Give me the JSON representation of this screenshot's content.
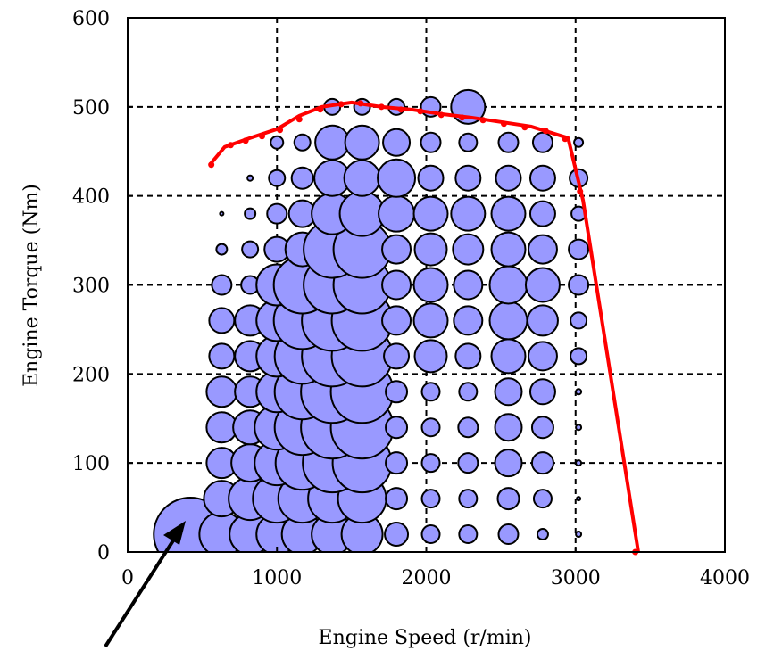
{
  "chart_data": {
    "type": "scatter",
    "subtype": "bubble",
    "xlabel": "Engine Speed (r/min)",
    "ylabel": "Engine Torque (Nm)",
    "xlim": [
      0,
      4000
    ],
    "ylim": [
      0,
      600
    ],
    "x_ticks": [
      "0",
      "1000",
      "2000",
      "3000",
      "4000"
    ],
    "y_ticks": [
      "0",
      "100",
      "200",
      "300",
      "400",
      "500",
      "600"
    ],
    "grid": "dashed",
    "colors": {
      "bubble_fill": "#9999ff",
      "bubble_stroke": "#000000",
      "curve": "#ff0000",
      "grid": "#000000"
    },
    "speeds": [
      420,
      630,
      820,
      1000,
      1170,
      1370,
      1570,
      1800,
      2030,
      2280,
      2550,
      2780,
      3020
    ],
    "torques": [
      20,
      60,
      100,
      140,
      180,
      220,
      260,
      300,
      340,
      380,
      420,
      460,
      500
    ],
    "bubble_sizes": [
      [
        41,
        25,
        23,
        23,
        23,
        23,
        23,
        13,
        10,
        10,
        11,
        6,
        3
      ],
      [
        0,
        20,
        24,
        27,
        27,
        27,
        27,
        12,
        10,
        10,
        12,
        10,
        2
      ],
      [
        0,
        17,
        21,
        25,
        30,
        33,
        33,
        12,
        10,
        11,
        15,
        12,
        3
      ],
      [
        0,
        17,
        19,
        25,
        31,
        35,
        35,
        12,
        10,
        11,
        15,
        12,
        3
      ],
      [
        0,
        17,
        17,
        23,
        31,
        35,
        35,
        12,
        10,
        10,
        15,
        14,
        3
      ],
      [
        0,
        14,
        17,
        23,
        31,
        34,
        34,
        14,
        18,
        14,
        19,
        16,
        9
      ],
      [
        0,
        14,
        17,
        23,
        32,
        34,
        34,
        16,
        19,
        16,
        21,
        17,
        9
      ],
      [
        0,
        11,
        10,
        23,
        32,
        32,
        32,
        16,
        19,
        16,
        21,
        19,
        11
      ],
      [
        0,
        6,
        9,
        14,
        19,
        32,
        32,
        16,
        18,
        17,
        19,
        16,
        11
      ],
      [
        0,
        2,
        6,
        11,
        15,
        23,
        25,
        20,
        19,
        19,
        19,
        14,
        8
      ],
      [
        0,
        0,
        3,
        9,
        12,
        20,
        20,
        21,
        14,
        14,
        14,
        14,
        10
      ],
      [
        0,
        0,
        0,
        7,
        9,
        19,
        19,
        15,
        11,
        10,
        11,
        11,
        5
      ],
      [
        0,
        0,
        0,
        0,
        0,
        9,
        9,
        9,
        11,
        19,
        0,
        0,
        0
      ]
    ],
    "wot_curve": {
      "x": [
        550,
        650,
        820,
        1000,
        1150,
        1300,
        1500,
        1700,
        1900,
        2100,
        2300,
        2500,
        2700,
        2950,
        3050,
        3420
      ],
      "y": [
        435,
        455,
        465,
        475,
        490,
        500,
        505,
        500,
        497,
        492,
        488,
        483,
        478,
        465,
        395,
        0
      ]
    },
    "dotted_points": {
      "x": [
        560,
        690,
        790,
        900,
        1020,
        1150,
        1290,
        1430,
        1560,
        1700,
        1830,
        1960,
        2100,
        2240,
        2380,
        2520,
        2660,
        2800,
        2930,
        3030,
        3400
      ],
      "y": [
        435,
        457,
        462,
        467,
        474,
        486,
        497,
        503,
        504,
        500,
        497,
        495,
        491,
        488,
        485,
        481,
        477,
        473,
        464,
        405,
        0
      ]
    }
  }
}
